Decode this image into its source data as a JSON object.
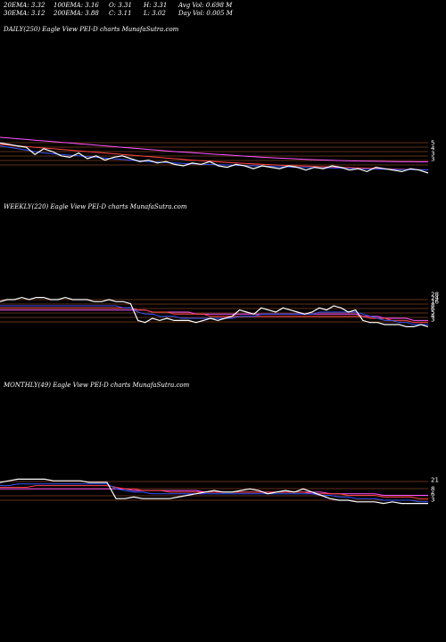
{
  "header": {
    "ema20": "20EMA: 3.32",
    "ema100": "100EMA: 3.16",
    "open": "O: 3.31",
    "high": "H: 3.31",
    "avg_vol": "Avg Vol: 0.698  M",
    "ema30": "30EMA: 3.12",
    "ema200": "200EMA: 3.88",
    "close": "C: 3.11",
    "low": "L: 3.02",
    "day_vol": "Day Vol: 0.005 M"
  },
  "colors": {
    "background": "#000000",
    "price": "#ffffff",
    "ema_short": "#3355ff",
    "ema_mid": "#ff4444",
    "ema_long": "#ff55ff",
    "gridline": "#a0522d"
  },
  "chart_data": [
    {
      "type": "line",
      "title": "DAILY(250) Eagle   View  PEI-D charts MunafaSutra.com",
      "y_ticks": [
        "5",
        "4",
        "3",
        "3"
      ],
      "series": [
        {
          "key": "price",
          "values": [
            5.2,
            5.1,
            5.0,
            4.9,
            4.4,
            4.8,
            4.6,
            4.3,
            4.2,
            4.5,
            4.1,
            4.3,
            4.0,
            4.2,
            4.3,
            4.1,
            3.9,
            4.0,
            3.8,
            3.9,
            3.7,
            3.6,
            3.8,
            3.7,
            3.9,
            3.6,
            3.5,
            3.7,
            3.6,
            3.4,
            3.6,
            3.5,
            3.4,
            3.6,
            3.5,
            3.3,
            3.5,
            3.4,
            3.6,
            3.5,
            3.3,
            3.4,
            3.2,
            3.5,
            3.4,
            3.3,
            3.2,
            3.4,
            3.3,
            3.1
          ]
        },
        {
          "key": "ema_short",
          "values": [
            5.0,
            4.9,
            4.8,
            4.7,
            4.6,
            4.5,
            4.45,
            4.4,
            4.35,
            4.3,
            4.25,
            4.2,
            4.15,
            4.1,
            4.05,
            4.0,
            3.95,
            3.9,
            3.87,
            3.84,
            3.8,
            3.77,
            3.74,
            3.72,
            3.7,
            3.68,
            3.66,
            3.64,
            3.62,
            3.6,
            3.58,
            3.56,
            3.54,
            3.52,
            3.5,
            3.48,
            3.47,
            3.46,
            3.45,
            3.44,
            3.42,
            3.4,
            3.38,
            3.37,
            3.36,
            3.35,
            3.34,
            3.33,
            3.32,
            3.32
          ]
        },
        {
          "key": "ema_mid",
          "values": [
            5.1,
            5.05,
            5.0,
            4.95,
            4.9,
            4.85,
            4.8,
            4.75,
            4.7,
            4.65,
            4.6,
            4.55,
            4.5,
            4.45,
            4.4,
            4.35,
            4.3,
            4.25,
            4.2,
            4.15,
            4.1,
            4.05,
            4.0,
            3.96,
            3.92,
            3.88,
            3.84,
            3.8,
            3.77,
            3.74,
            3.71,
            3.68,
            3.65,
            3.62,
            3.6,
            3.58,
            3.56,
            3.54,
            3.52,
            3.5,
            3.48,
            3.46,
            3.44,
            3.42,
            3.4,
            3.38,
            3.36,
            3.34,
            3.33,
            3.32
          ]
        },
        {
          "key": "ema_long",
          "values": [
            5.6,
            5.55,
            5.5,
            5.45,
            5.4,
            5.35,
            5.3,
            5.25,
            5.2,
            5.15,
            5.1,
            5.05,
            5.0,
            4.95,
            4.9,
            4.85,
            4.8,
            4.75,
            4.7,
            4.65,
            4.6,
            4.56,
            4.52,
            4.48,
            4.44,
            4.4,
            4.36,
            4.32,
            4.28,
            4.24,
            4.2,
            4.17,
            4.14,
            4.11,
            4.08,
            4.05,
            4.03,
            4.01,
            3.99,
            3.97,
            3.95,
            3.94,
            3.93,
            3.92,
            3.91,
            3.9,
            3.89,
            3.89,
            3.88,
            3.88
          ]
        }
      ]
    },
    {
      "type": "line",
      "title": "WEEKLY(220) Eagle   View  PEI-D charts MunafaSutra.com",
      "y_ticks": [
        "28",
        "24",
        "16",
        "8",
        "6",
        "5",
        "4",
        "3"
      ],
      "series": [
        {
          "key": "price",
          "values": [
            15,
            16,
            16,
            17,
            16,
            17,
            17,
            16,
            16,
            17,
            16,
            16,
            16,
            15,
            15,
            16,
            15,
            15,
            14,
            6,
            5,
            7,
            6,
            7,
            6,
            6,
            6,
            5,
            6,
            7,
            6,
            7,
            8,
            11,
            10,
            9,
            12,
            11,
            10,
            12,
            11,
            10,
            9,
            10,
            12,
            11,
            13,
            12,
            10,
            11,
            6,
            5,
            5,
            4,
            4,
            4,
            3,
            3,
            4,
            3
          ]
        },
        {
          "key": "ema_short",
          "values": [
            13,
            13,
            13,
            13,
            13,
            13,
            13,
            13,
            13,
            13,
            13,
            13,
            13,
            13,
            13,
            13,
            13,
            12,
            12,
            10,
            9,
            9,
            8,
            8,
            8,
            7,
            7,
            7,
            7,
            7,
            7,
            7,
            7,
            8,
            8,
            8,
            9,
            9,
            9,
            9,
            9,
            9,
            9,
            9,
            10,
            10,
            10,
            10,
            10,
            10,
            9,
            8,
            7,
            6,
            6,
            5,
            5,
            4,
            4,
            4
          ]
        },
        {
          "key": "ema_mid",
          "values": [
            12,
            12,
            12,
            12,
            12,
            12,
            12,
            12,
            12,
            12,
            12,
            12,
            12,
            12,
            12,
            12,
            12,
            12,
            12,
            11,
            11,
            10,
            10,
            10,
            9,
            9,
            9,
            9,
            9,
            8,
            8,
            8,
            8,
            8,
            8,
            8,
            8,
            8,
            8,
            8,
            8,
            8,
            8,
            8,
            8,
            8,
            8,
            8,
            8,
            8,
            8,
            7,
            7,
            7,
            6,
            6,
            6,
            5,
            5,
            5
          ]
        },
        {
          "key": "ema_long",
          "values": [
            11,
            11,
            11,
            11,
            11,
            11,
            11,
            11,
            11,
            11,
            11,
            11,
            11,
            11,
            11,
            11,
            11,
            11,
            11,
            11,
            11,
            10,
            10,
            10,
            10,
            10,
            10,
            9,
            9,
            9,
            9,
            9,
            9,
            9,
            9,
            9,
            9,
            9,
            9,
            9,
            9,
            9,
            9,
            9,
            9,
            9,
            9,
            9,
            9,
            9,
            8,
            8,
            8,
            7,
            7,
            7,
            7,
            6,
            6,
            6
          ]
        }
      ]
    },
    {
      "type": "line",
      "title": "MONTHLY(49) Eagle   View  PEI-D charts MunafaSutra.com",
      "y_ticks": [
        "21",
        "8",
        "6",
        "3"
      ],
      "series": [
        {
          "key": "price",
          "values": [
            16,
            17,
            18,
            18,
            18,
            18,
            17,
            17,
            17,
            17,
            16,
            16,
            16,
            6,
            6,
            7,
            6,
            6,
            6,
            6,
            7,
            8,
            9,
            10,
            11,
            10,
            10,
            11,
            12,
            11,
            9,
            10,
            11,
            10,
            12,
            10,
            8,
            6,
            5,
            5,
            4,
            4,
            4,
            3,
            4,
            3,
            3,
            3,
            3
          ]
        },
        {
          "key": "ema_short",
          "values": [
            14,
            14,
            15,
            15,
            15,
            15,
            15,
            15,
            15,
            15,
            15,
            15,
            15,
            12,
            11,
            10,
            10,
            9,
            9,
            9,
            9,
            9,
            9,
            9,
            9,
            9,
            9,
            9,
            9,
            9,
            9,
            9,
            9,
            9,
            9,
            9,
            8,
            8,
            7,
            7,
            6,
            6,
            6,
            5,
            5,
            5,
            5,
            4,
            4
          ]
        },
        {
          "key": "ema_mid",
          "values": [
            13,
            13,
            13,
            13,
            14,
            14,
            14,
            14,
            14,
            14,
            14,
            14,
            14,
            13,
            12,
            12,
            11,
            11,
            11,
            10,
            10,
            10,
            10,
            10,
            10,
            10,
            10,
            10,
            10,
            10,
            10,
            10,
            10,
            10,
            10,
            9,
            9,
            9,
            9,
            8,
            8,
            8,
            8,
            7,
            7,
            7,
            7,
            6,
            6
          ]
        },
        {
          "key": "ema_long",
          "values": [
            12,
            12,
            12,
            12,
            12,
            12,
            12,
            12,
            12,
            12,
            12,
            12,
            12,
            12,
            12,
            11,
            11,
            11,
            11,
            11,
            11,
            11,
            11,
            10,
            10,
            10,
            10,
            10,
            10,
            10,
            10,
            10,
            10,
            10,
            10,
            10,
            10,
            9,
            9,
            9,
            9,
            9,
            9,
            8,
            8,
            8,
            8,
            8,
            8
          ]
        }
      ]
    }
  ]
}
